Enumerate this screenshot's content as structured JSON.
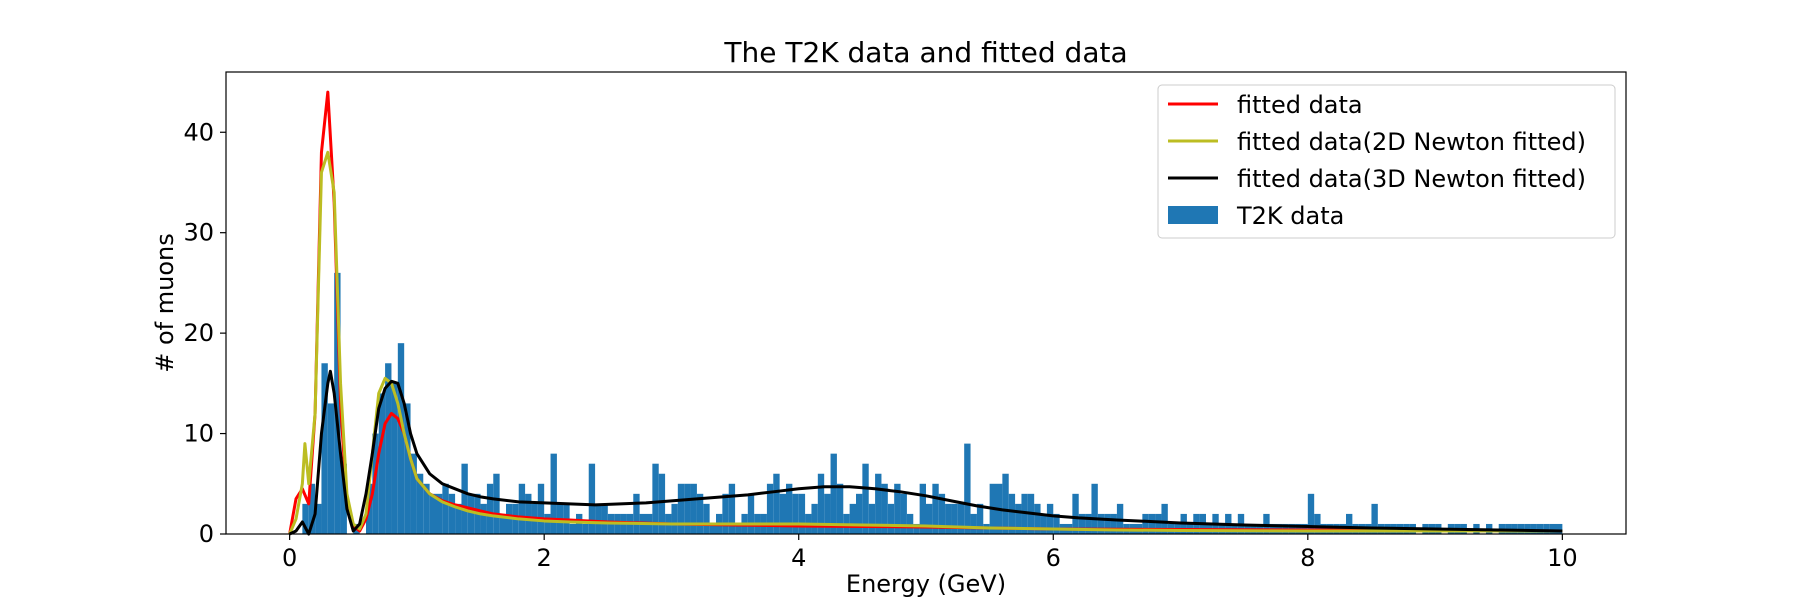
{
  "chart_data": {
    "type": "bar",
    "title": "The T2K data and fitted data",
    "xlabel": "Energy (GeV)",
    "ylabel": "# of muons",
    "xlim": [
      -0.5,
      10.5
    ],
    "ylim": [
      0,
      46
    ],
    "xticks": [
      0,
      2,
      4,
      6,
      8,
      10
    ],
    "yticks": [
      0,
      10,
      20,
      30,
      40
    ],
    "grid": false,
    "legend_position": "top-right",
    "bin_width": 0.05,
    "histogram": {
      "name": "T2K data",
      "color": "#1f77b4",
      "bins": [
        [
          0.1,
          3
        ],
        [
          0.15,
          5
        ],
        [
          0.2,
          3
        ],
        [
          0.25,
          17
        ],
        [
          0.3,
          13
        ],
        [
          0.35,
          26
        ],
        [
          0.4,
          7
        ],
        [
          0.5,
          1
        ],
        [
          0.6,
          5
        ],
        [
          0.65,
          10
        ],
        [
          0.7,
          14
        ],
        [
          0.75,
          17
        ],
        [
          0.8,
          15
        ],
        [
          0.85,
          19
        ],
        [
          0.9,
          13
        ],
        [
          0.95,
          8
        ],
        [
          1.0,
          6
        ],
        [
          1.05,
          5
        ],
        [
          1.1,
          4
        ],
        [
          1.15,
          4
        ],
        [
          1.2,
          5
        ],
        [
          1.25,
          4
        ],
        [
          1.3,
          3
        ],
        [
          1.35,
          7
        ],
        [
          1.4,
          4
        ],
        [
          1.45,
          4
        ],
        [
          1.5,
          3
        ],
        [
          1.55,
          5
        ],
        [
          1.6,
          6
        ],
        [
          1.65,
          2
        ],
        [
          1.7,
          3
        ],
        [
          1.75,
          3
        ],
        [
          1.8,
          5
        ],
        [
          1.85,
          4
        ],
        [
          1.9,
          3
        ],
        [
          1.95,
          5
        ],
        [
          2.0,
          2
        ],
        [
          2.05,
          8
        ],
        [
          2.1,
          3
        ],
        [
          2.15,
          3
        ],
        [
          2.2,
          1
        ],
        [
          2.25,
          2
        ],
        [
          2.3,
          1
        ],
        [
          2.35,
          7
        ],
        [
          2.4,
          3
        ],
        [
          2.45,
          3
        ],
        [
          2.5,
          2
        ],
        [
          2.55,
          2
        ],
        [
          2.6,
          2
        ],
        [
          2.65,
          2
        ],
        [
          2.7,
          4
        ],
        [
          2.75,
          2
        ],
        [
          2.8,
          2
        ],
        [
          2.85,
          7
        ],
        [
          2.9,
          6
        ],
        [
          2.95,
          2
        ],
        [
          3.0,
          3
        ],
        [
          3.05,
          5
        ],
        [
          3.1,
          5
        ],
        [
          3.15,
          5
        ],
        [
          3.2,
          4
        ],
        [
          3.25,
          3
        ],
        [
          3.3,
          1
        ],
        [
          3.35,
          2
        ],
        [
          3.4,
          4
        ],
        [
          3.45,
          5
        ],
        [
          3.5,
          1
        ],
        [
          3.55,
          2
        ],
        [
          3.6,
          4
        ],
        [
          3.65,
          2
        ],
        [
          3.7,
          2
        ],
        [
          3.75,
          5
        ],
        [
          3.8,
          6
        ],
        [
          3.85,
          4
        ],
        [
          3.9,
          5
        ],
        [
          3.95,
          4
        ],
        [
          4.0,
          4
        ],
        [
          4.05,
          2
        ],
        [
          4.1,
          3
        ],
        [
          4.15,
          6
        ],
        [
          4.2,
          4
        ],
        [
          4.25,
          8
        ],
        [
          4.3,
          5
        ],
        [
          4.35,
          2
        ],
        [
          4.4,
          3
        ],
        [
          4.45,
          4
        ],
        [
          4.5,
          7
        ],
        [
          4.55,
          3
        ],
        [
          4.6,
          6
        ],
        [
          4.65,
          5
        ],
        [
          4.7,
          3
        ],
        [
          4.75,
          5
        ],
        [
          4.8,
          4
        ],
        [
          4.85,
          2
        ],
        [
          4.9,
          1
        ],
        [
          4.95,
          5
        ],
        [
          5.0,
          3
        ],
        [
          5.05,
          5
        ],
        [
          5.1,
          4
        ],
        [
          5.15,
          3
        ],
        [
          5.2,
          3
        ],
        [
          5.25,
          3
        ],
        [
          5.3,
          9
        ],
        [
          5.35,
          2
        ],
        [
          5.4,
          3
        ],
        [
          5.45,
          1
        ],
        [
          5.5,
          5
        ],
        [
          5.55,
          5
        ],
        [
          5.6,
          6
        ],
        [
          5.65,
          4
        ],
        [
          5.7,
          3
        ],
        [
          5.75,
          4
        ],
        [
          5.8,
          4
        ],
        [
          5.85,
          3
        ],
        [
          5.9,
          2
        ],
        [
          5.95,
          3
        ],
        [
          6.0,
          2
        ],
        [
          6.05,
          1
        ],
        [
          6.1,
          1
        ],
        [
          6.15,
          4
        ],
        [
          6.2,
          2
        ],
        [
          6.25,
          2
        ],
        [
          6.3,
          5
        ],
        [
          6.35,
          2
        ],
        [
          6.4,
          2
        ],
        [
          6.45,
          2
        ],
        [
          6.5,
          3
        ],
        [
          6.55,
          1
        ],
        [
          6.6,
          1
        ],
        [
          6.65,
          1
        ],
        [
          6.7,
          2
        ],
        [
          6.75,
          2
        ],
        [
          6.8,
          2
        ],
        [
          6.85,
          3
        ],
        [
          6.9,
          1
        ],
        [
          6.95,
          1
        ],
        [
          7.0,
          2
        ],
        [
          7.05,
          1
        ],
        [
          7.1,
          2
        ],
        [
          7.15,
          2
        ],
        [
          7.2,
          1
        ],
        [
          7.25,
          2
        ],
        [
          7.3,
          1
        ],
        [
          7.35,
          2
        ],
        [
          7.4,
          1
        ],
        [
          7.45,
          2
        ],
        [
          7.5,
          1
        ],
        [
          7.55,
          1
        ],
        [
          7.6,
          1
        ],
        [
          7.65,
          2
        ],
        [
          7.7,
          1
        ],
        [
          7.75,
          1
        ],
        [
          7.8,
          1
        ],
        [
          7.85,
          1
        ],
        [
          7.9,
          1
        ],
        [
          7.95,
          1
        ],
        [
          8.0,
          4
        ],
        [
          8.05,
          2
        ],
        [
          8.1,
          1
        ],
        [
          8.15,
          1
        ],
        [
          8.2,
          1
        ],
        [
          8.25,
          1
        ],
        [
          8.3,
          2
        ],
        [
          8.35,
          1
        ],
        [
          8.4,
          1
        ],
        [
          8.45,
          1
        ],
        [
          8.5,
          3
        ],
        [
          8.55,
          1
        ],
        [
          8.6,
          1
        ],
        [
          8.65,
          1
        ],
        [
          8.7,
          1
        ],
        [
          8.75,
          1
        ],
        [
          8.8,
          1
        ],
        [
          8.9,
          1
        ],
        [
          8.95,
          1
        ],
        [
          9.0,
          1
        ],
        [
          9.1,
          1
        ],
        [
          9.15,
          1
        ],
        [
          9.2,
          1
        ],
        [
          9.3,
          1
        ],
        [
          9.4,
          1
        ],
        [
          9.5,
          1
        ],
        [
          9.55,
          1
        ],
        [
          9.6,
          1
        ],
        [
          9.65,
          1
        ],
        [
          9.7,
          1
        ],
        [
          9.75,
          1
        ],
        [
          9.8,
          1
        ],
        [
          9.85,
          1
        ],
        [
          9.9,
          1
        ],
        [
          9.95,
          1
        ]
      ]
    },
    "series": [
      {
        "name": "fitted data",
        "color": "#ff0000",
        "points": [
          [
            0.0,
            0
          ],
          [
            0.05,
            3.5
          ],
          [
            0.1,
            4.5
          ],
          [
            0.15,
            3
          ],
          [
            0.2,
            12
          ],
          [
            0.25,
            38
          ],
          [
            0.3,
            44
          ],
          [
            0.35,
            33
          ],
          [
            0.4,
            13
          ],
          [
            0.45,
            3
          ],
          [
            0.5,
            0.8
          ],
          [
            0.55,
            0.3
          ],
          [
            0.6,
            1.5
          ],
          [
            0.65,
            4
          ],
          [
            0.7,
            8
          ],
          [
            0.75,
            11
          ],
          [
            0.8,
            12
          ],
          [
            0.85,
            11.5
          ],
          [
            0.9,
            10
          ],
          [
            0.95,
            7.5
          ],
          [
            1.0,
            5.5
          ],
          [
            1.1,
            4
          ],
          [
            1.2,
            3.3
          ],
          [
            1.3,
            2.9
          ],
          [
            1.4,
            2.6
          ],
          [
            1.5,
            2.3
          ],
          [
            1.6,
            2.0
          ],
          [
            1.8,
            1.7
          ],
          [
            2.0,
            1.5
          ],
          [
            2.2,
            1.4
          ],
          [
            2.5,
            1.2
          ],
          [
            3.0,
            1.0
          ],
          [
            3.5,
            0.9
          ],
          [
            4.0,
            0.8
          ],
          [
            4.5,
            0.75
          ],
          [
            5.0,
            0.7
          ],
          [
            5.5,
            0.6
          ],
          [
            6.0,
            0.5
          ],
          [
            7.0,
            0.45
          ],
          [
            8.0,
            0.4
          ],
          [
            9.0,
            0.35
          ],
          [
            10.0,
            0.3
          ]
        ]
      },
      {
        "name": "fitted data(2D Newton fitted)",
        "color": "#bcbd22",
        "points": [
          [
            0.0,
            0
          ],
          [
            0.05,
            1.5
          ],
          [
            0.1,
            5
          ],
          [
            0.12,
            9
          ],
          [
            0.15,
            5
          ],
          [
            0.2,
            12
          ],
          [
            0.25,
            36
          ],
          [
            0.3,
            38
          ],
          [
            0.35,
            34
          ],
          [
            0.4,
            15
          ],
          [
            0.45,
            4
          ],
          [
            0.5,
            1
          ],
          [
            0.55,
            0.5
          ],
          [
            0.6,
            2
          ],
          [
            0.65,
            8
          ],
          [
            0.7,
            14
          ],
          [
            0.75,
            15.5
          ],
          [
            0.8,
            15
          ],
          [
            0.85,
            13
          ],
          [
            0.9,
            10
          ],
          [
            0.95,
            7.5
          ],
          [
            1.0,
            5.5
          ],
          [
            1.1,
            4
          ],
          [
            1.2,
            3.2
          ],
          [
            1.3,
            2.7
          ],
          [
            1.4,
            2.3
          ],
          [
            1.5,
            2.0
          ],
          [
            1.6,
            1.8
          ],
          [
            1.8,
            1.5
          ],
          [
            2.0,
            1.3
          ],
          [
            2.2,
            1.2
          ],
          [
            2.5,
            1.1
          ],
          [
            3.0,
            1.0
          ],
          [
            3.5,
            1.0
          ],
          [
            4.0,
            1.0
          ],
          [
            4.5,
            0.9
          ],
          [
            5.0,
            0.8
          ],
          [
            5.5,
            0.6
          ],
          [
            6.0,
            0.5
          ],
          [
            6.5,
            0.4
          ],
          [
            7.0,
            0.35
          ],
          [
            8.0,
            0.3
          ],
          [
            9.0,
            0.3
          ],
          [
            10.0,
            0.3
          ]
        ]
      },
      {
        "name": "fitted data(3D Newton fitted)",
        "color": "#000000",
        "points": [
          [
            0.0,
            0
          ],
          [
            0.05,
            0.3
          ],
          [
            0.1,
            1.2
          ],
          [
            0.15,
            0
          ],
          [
            0.2,
            2
          ],
          [
            0.25,
            10
          ],
          [
            0.3,
            15
          ],
          [
            0.32,
            16.2
          ],
          [
            0.35,
            14
          ],
          [
            0.4,
            8
          ],
          [
            0.45,
            2.5
          ],
          [
            0.5,
            0.3
          ],
          [
            0.55,
            1
          ],
          [
            0.6,
            4
          ],
          [
            0.65,
            8
          ],
          [
            0.7,
            12.5
          ],
          [
            0.75,
            14.5
          ],
          [
            0.8,
            15.2
          ],
          [
            0.85,
            15
          ],
          [
            0.9,
            13
          ],
          [
            0.95,
            10
          ],
          [
            1.0,
            8
          ],
          [
            1.1,
            6
          ],
          [
            1.2,
            5
          ],
          [
            1.3,
            4.5
          ],
          [
            1.4,
            4
          ],
          [
            1.5,
            3.7
          ],
          [
            1.6,
            3.5
          ],
          [
            1.8,
            3.2
          ],
          [
            2.0,
            3.1
          ],
          [
            2.2,
            3.0
          ],
          [
            2.4,
            2.9
          ],
          [
            2.6,
            3.0
          ],
          [
            2.8,
            3.1
          ],
          [
            3.0,
            3.3
          ],
          [
            3.2,
            3.5
          ],
          [
            3.4,
            3.7
          ],
          [
            3.6,
            3.9
          ],
          [
            3.8,
            4.2
          ],
          [
            4.0,
            4.5
          ],
          [
            4.2,
            4.7
          ],
          [
            4.4,
            4.7
          ],
          [
            4.6,
            4.5
          ],
          [
            4.8,
            4.2
          ],
          [
            5.0,
            3.8
          ],
          [
            5.2,
            3.3
          ],
          [
            5.4,
            2.8
          ],
          [
            5.6,
            2.4
          ],
          [
            5.8,
            2.1
          ],
          [
            6.0,
            1.8
          ],
          [
            6.2,
            1.6
          ],
          [
            6.5,
            1.4
          ],
          [
            7.0,
            1.1
          ],
          [
            7.5,
            0.9
          ],
          [
            8.0,
            0.75
          ],
          [
            8.5,
            0.6
          ],
          [
            9.0,
            0.5
          ],
          [
            9.5,
            0.4
          ],
          [
            10.0,
            0.3
          ]
        ]
      }
    ]
  }
}
